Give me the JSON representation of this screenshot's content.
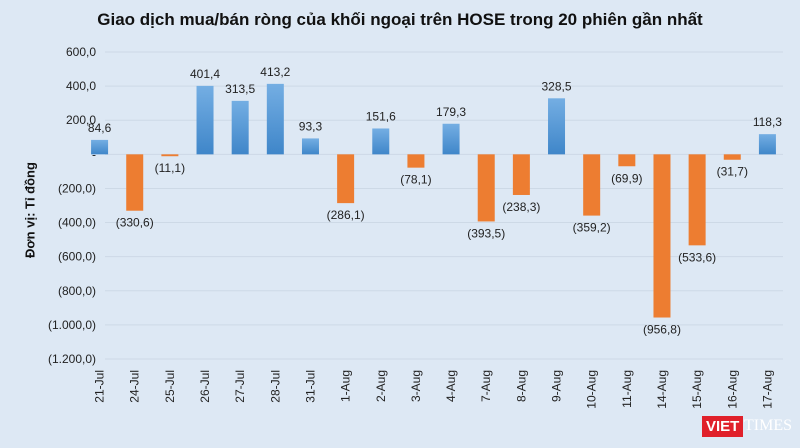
{
  "chart_data": {
    "type": "bar",
    "title": "Giao dịch mua/bán ròng của khối ngoại trên HOSE trong 20 phiên gần nhất",
    "ylabel": "Đơn vị: Tỉ đồng",
    "xlabel": "",
    "ylim": [
      -1200,
      600
    ],
    "yticks": [
      600,
      400,
      200,
      0,
      -200,
      -400,
      -600,
      -800,
      -1000,
      -1200
    ],
    "ytick_labels": [
      "600,0",
      "400,0",
      "200,0",
      "-",
      "(200,0)",
      "(400,0)",
      "(600,0)",
      "(800,0)",
      "(1.000,0)",
      "(1.200,0)"
    ],
    "grid": true,
    "legend": "none",
    "categories": [
      "21-Jul",
      "24-Jul",
      "25-Jul",
      "26-Jul",
      "27-Jul",
      "28-Jul",
      "31-Jul",
      "1-Aug",
      "2-Aug",
      "3-Aug",
      "4-Aug",
      "7-Aug",
      "8-Aug",
      "9-Aug",
      "10-Aug",
      "11-Aug",
      "14-Aug",
      "15-Aug",
      "16-Aug",
      "17-Aug"
    ],
    "values": [
      84.6,
      -330.6,
      -11.1,
      401.4,
      313.5,
      413.2,
      93.3,
      -286.1,
      151.6,
      -78.1,
      179.3,
      -393.5,
      -238.3,
      328.5,
      -359.2,
      -69.9,
      -956.8,
      -533.6,
      -31.7,
      118.3
    ],
    "data_labels": [
      "84,6",
      "(330,6)",
      "(11,1)",
      "401,4",
      "313,5",
      "413,2",
      "93,3",
      "(286,1)",
      "151,6",
      "(78,1)",
      "179,3",
      "(393,5)",
      "(238,3)",
      "328,5",
      "(359,2)",
      "(69,9)",
      "(956,8)",
      "(533,6)",
      "(31,7)",
      "118,3"
    ],
    "colors": {
      "positive": "#5b9bd5",
      "negative": "#ed7d31",
      "background": "#dde8f4"
    }
  },
  "logo": {
    "text": "VIETTIMES"
  }
}
